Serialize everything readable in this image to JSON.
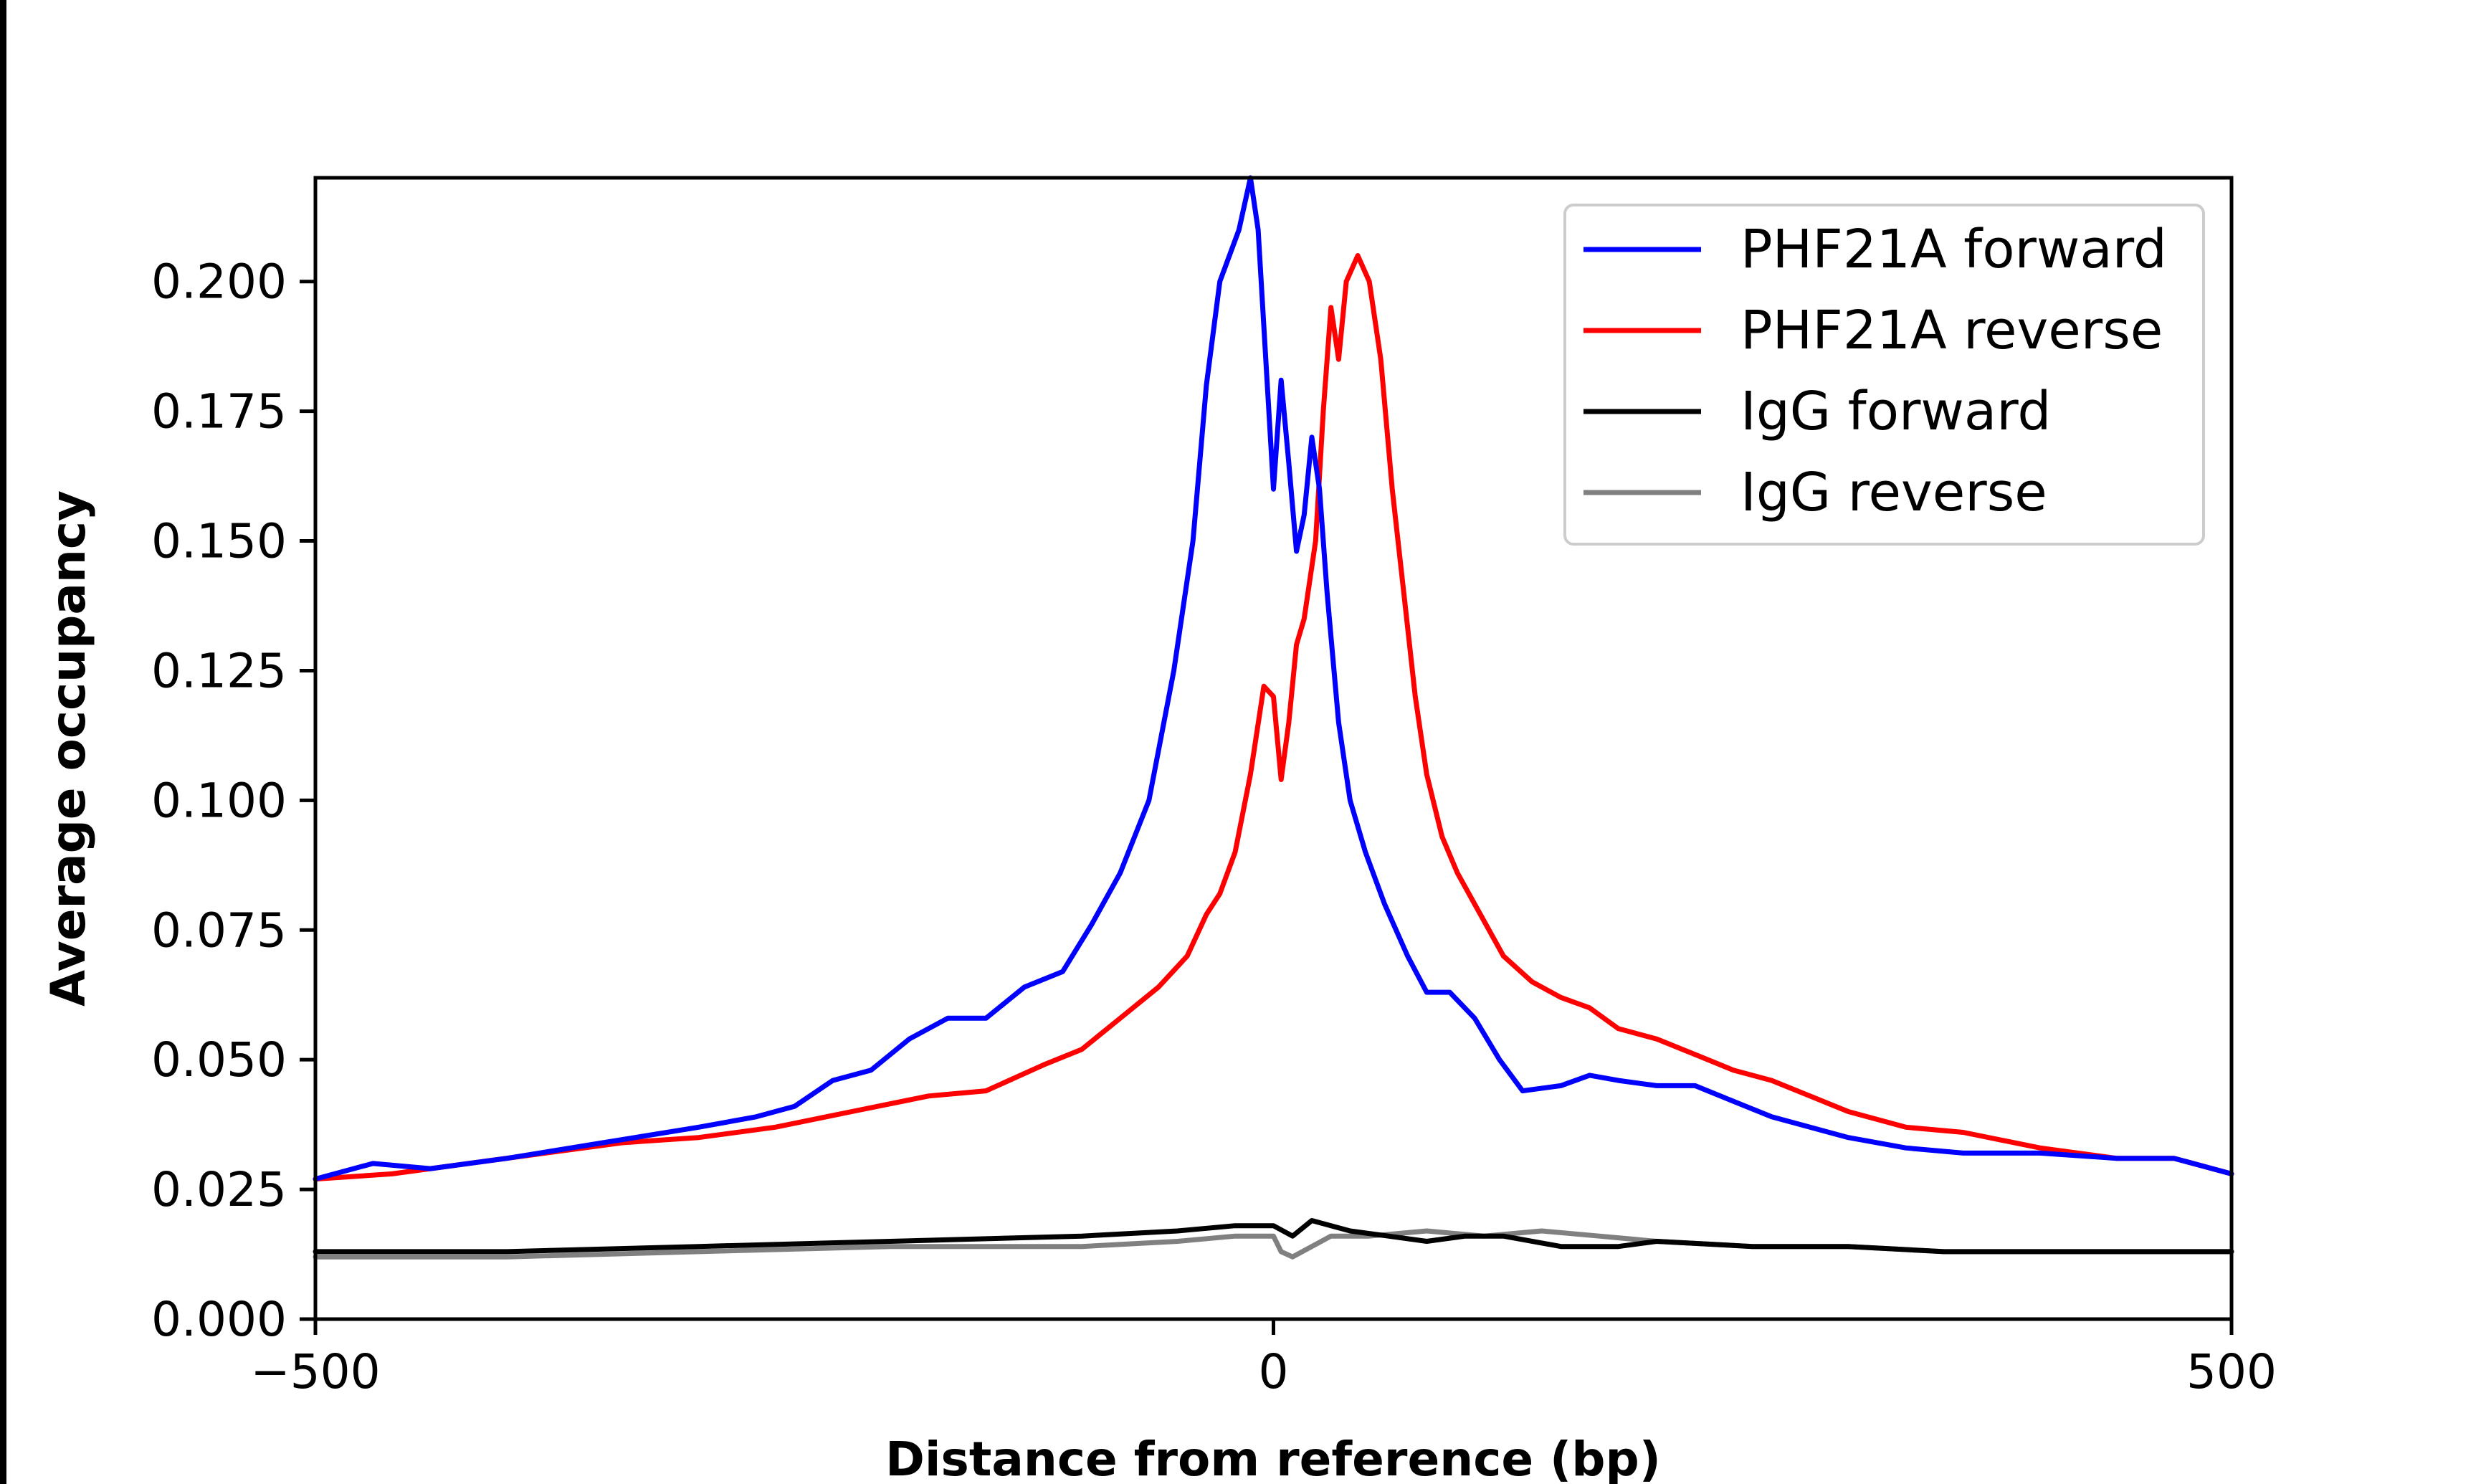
{
  "chart_data": {
    "type": "line",
    "title": "",
    "xlabel": "Distance from reference (bp)",
    "ylabel": "Average occupancy",
    "xlim": [
      -500,
      500
    ],
    "ylim": [
      0,
      0.22
    ],
    "xticks": [
      {
        "value": -500,
        "label": "−500"
      },
      {
        "value": 0,
        "label": "0"
      },
      {
        "value": 500,
        "label": "500"
      }
    ],
    "yticks": [
      {
        "value": 0,
        "label": "0.000"
      },
      {
        "value": 0.025,
        "label": "0.025"
      },
      {
        "value": 0.05,
        "label": "0.050"
      },
      {
        "value": 0.075,
        "label": "0.075"
      },
      {
        "value": 0.1,
        "label": "0.100"
      },
      {
        "value": 0.125,
        "label": "0.125"
      },
      {
        "value": 0.15,
        "label": "0.150"
      },
      {
        "value": 0.175,
        "label": "0.175"
      },
      {
        "value": 0.2,
        "label": "0.200"
      }
    ],
    "grid": false,
    "legend_position": "top-right",
    "series": [
      {
        "name": "PHF21A forward",
        "color": "#0000ff",
        "points": [
          [
            -500,
            0.027
          ],
          [
            -470,
            0.03
          ],
          [
            -440,
            0.029
          ],
          [
            -400,
            0.031
          ],
          [
            -350,
            0.034
          ],
          [
            -300,
            0.037
          ],
          [
            -270,
            0.039
          ],
          [
            -250,
            0.041
          ],
          [
            -230,
            0.046
          ],
          [
            -210,
            0.048
          ],
          [
            -190,
            0.054
          ],
          [
            -170,
            0.058
          ],
          [
            -150,
            0.058
          ],
          [
            -130,
            0.064
          ],
          [
            -110,
            0.067
          ],
          [
            -95,
            0.076
          ],
          [
            -80,
            0.086
          ],
          [
            -65,
            0.1
          ],
          [
            -52,
            0.125
          ],
          [
            -42,
            0.15
          ],
          [
            -35,
            0.18
          ],
          [
            -28,
            0.2
          ],
          [
            -18,
            0.21
          ],
          [
            -12,
            0.22
          ],
          [
            -8,
            0.21
          ],
          [
            -4,
            0.185
          ],
          [
            0,
            0.16
          ],
          [
            4,
            0.181
          ],
          [
            8,
            0.165
          ],
          [
            12,
            0.148
          ],
          [
            16,
            0.155
          ],
          [
            20,
            0.17
          ],
          [
            24,
            0.16
          ],
          [
            28,
            0.14
          ],
          [
            34,
            0.115
          ],
          [
            40,
            0.1
          ],
          [
            48,
            0.09
          ],
          [
            58,
            0.08
          ],
          [
            70,
            0.07
          ],
          [
            80,
            0.063
          ],
          [
            92,
            0.063
          ],
          [
            105,
            0.058
          ],
          [
            118,
            0.05
          ],
          [
            130,
            0.044
          ],
          [
            150,
            0.045
          ],
          [
            165,
            0.047
          ],
          [
            180,
            0.046
          ],
          [
            200,
            0.045
          ],
          [
            220,
            0.045
          ],
          [
            240,
            0.042
          ],
          [
            260,
            0.039
          ],
          [
            280,
            0.037
          ],
          [
            300,
            0.035
          ],
          [
            330,
            0.033
          ],
          [
            360,
            0.032
          ],
          [
            400,
            0.032
          ],
          [
            440,
            0.031
          ],
          [
            470,
            0.031
          ],
          [
            500,
            0.028
          ]
        ]
      },
      {
        "name": "PHF21A reverse",
        "color": "#ff0000",
        "points": [
          [
            -500,
            0.027
          ],
          [
            -460,
            0.028
          ],
          [
            -420,
            0.03
          ],
          [
            -380,
            0.032
          ],
          [
            -340,
            0.034
          ],
          [
            -300,
            0.035
          ],
          [
            -260,
            0.037
          ],
          [
            -220,
            0.04
          ],
          [
            -180,
            0.043
          ],
          [
            -150,
            0.044
          ],
          [
            -120,
            0.049
          ],
          [
            -100,
            0.052
          ],
          [
            -80,
            0.058
          ],
          [
            -60,
            0.064
          ],
          [
            -45,
            0.07
          ],
          [
            -35,
            0.078
          ],
          [
            -28,
            0.082
          ],
          [
            -20,
            0.09
          ],
          [
            -12,
            0.105
          ],
          [
            -5,
            0.122
          ],
          [
            0,
            0.12
          ],
          [
            4,
            0.104
          ],
          [
            8,
            0.115
          ],
          [
            12,
            0.13
          ],
          [
            16,
            0.135
          ],
          [
            22,
            0.15
          ],
          [
            26,
            0.175
          ],
          [
            30,
            0.195
          ],
          [
            34,
            0.185
          ],
          [
            38,
            0.2
          ],
          [
            44,
            0.205
          ],
          [
            50,
            0.2
          ],
          [
            56,
            0.185
          ],
          [
            62,
            0.16
          ],
          [
            68,
            0.14
          ],
          [
            74,
            0.12
          ],
          [
            80,
            0.105
          ],
          [
            88,
            0.093
          ],
          [
            96,
            0.086
          ],
          [
            108,
            0.078
          ],
          [
            120,
            0.07
          ],
          [
            135,
            0.065
          ],
          [
            150,
            0.062
          ],
          [
            165,
            0.06
          ],
          [
            180,
            0.056
          ],
          [
            200,
            0.054
          ],
          [
            220,
            0.051
          ],
          [
            240,
            0.048
          ],
          [
            260,
            0.046
          ],
          [
            280,
            0.043
          ],
          [
            300,
            0.04
          ],
          [
            330,
            0.037
          ],
          [
            360,
            0.036
          ],
          [
            400,
            0.033
          ],
          [
            440,
            0.031
          ],
          [
            470,
            0.031
          ],
          [
            500,
            0.028
          ]
        ]
      },
      {
        "name": "IgG forward",
        "color": "#000000",
        "points": [
          [
            -500,
            0.013
          ],
          [
            -400,
            0.013
          ],
          [
            -300,
            0.014
          ],
          [
            -200,
            0.015
          ],
          [
            -100,
            0.016
          ],
          [
            -50,
            0.017
          ],
          [
            -20,
            0.018
          ],
          [
            0,
            0.018
          ],
          [
            10,
            0.016
          ],
          [
            20,
            0.019
          ],
          [
            30,
            0.018
          ],
          [
            40,
            0.017
          ],
          [
            60,
            0.016
          ],
          [
            80,
            0.015
          ],
          [
            100,
            0.016
          ],
          [
            120,
            0.016
          ],
          [
            150,
            0.014
          ],
          [
            180,
            0.014
          ],
          [
            200,
            0.015
          ],
          [
            250,
            0.014
          ],
          [
            300,
            0.014
          ],
          [
            350,
            0.013
          ],
          [
            400,
            0.013
          ],
          [
            450,
            0.013
          ],
          [
            500,
            0.013
          ]
        ]
      },
      {
        "name": "IgG reverse",
        "color": "#808080",
        "points": [
          [
            -500,
            0.012
          ],
          [
            -400,
            0.012
          ],
          [
            -300,
            0.013
          ],
          [
            -200,
            0.014
          ],
          [
            -100,
            0.014
          ],
          [
            -50,
            0.015
          ],
          [
            -20,
            0.016
          ],
          [
            0,
            0.016
          ],
          [
            4,
            0.013
          ],
          [
            10,
            0.012
          ],
          [
            20,
            0.014
          ],
          [
            30,
            0.016
          ],
          [
            50,
            0.016
          ],
          [
            80,
            0.017
          ],
          [
            110,
            0.016
          ],
          [
            140,
            0.017
          ],
          [
            170,
            0.016
          ],
          [
            200,
            0.015
          ],
          [
            250,
            0.014
          ],
          [
            300,
            0.014
          ],
          [
            350,
            0.013
          ],
          [
            400,
            0.013
          ],
          [
            450,
            0.013
          ],
          [
            500,
            0.013
          ]
        ]
      }
    ]
  }
}
